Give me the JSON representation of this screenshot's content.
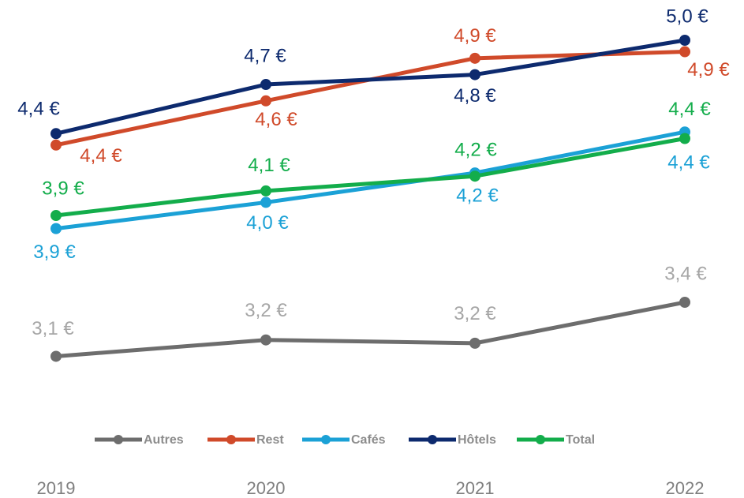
{
  "chart_data": {
    "type": "line",
    "categories": [
      "2019",
      "2020",
      "2021",
      "2022"
    ],
    "ylim": [
      2.8,
      5.1
    ],
    "series": [
      {
        "name": "Autres",
        "color": "#6d6d6d",
        "values": [
          3.07,
          3.17,
          3.15,
          3.4
        ],
        "value_labels": [
          "3,1 €",
          "3,2 €",
          "3,2 €",
          "3,4 €"
        ]
      },
      {
        "name": "Rest",
        "color": "#d04a2a",
        "values": [
          4.36,
          4.63,
          4.89,
          4.93
        ],
        "value_labels": [
          "4,4 €",
          "4,6 €",
          "4,9 €",
          "4,9 €"
        ]
      },
      {
        "name": "Cafés",
        "color": "#1ba1d6",
        "values": [
          3.85,
          4.01,
          4.19,
          4.44
        ],
        "value_labels": [
          "3,9 €",
          "4,0 €",
          "4,2 €",
          "4,4 €"
        ]
      },
      {
        "name": "Hôtels",
        "color": "#0d2a6e",
        "values": [
          4.43,
          4.73,
          4.79,
          5.0
        ],
        "value_labels": [
          "4,4 €",
          "4,7 €",
          "4,8 €",
          "5,0 €"
        ]
      },
      {
        "name": "Total",
        "color": "#13ad4b",
        "values": [
          3.93,
          4.08,
          4.17,
          4.4
        ],
        "value_labels": [
          "3,9 €",
          "4,1 €",
          "4,2 €",
          "4,4 €"
        ]
      }
    ]
  }
}
